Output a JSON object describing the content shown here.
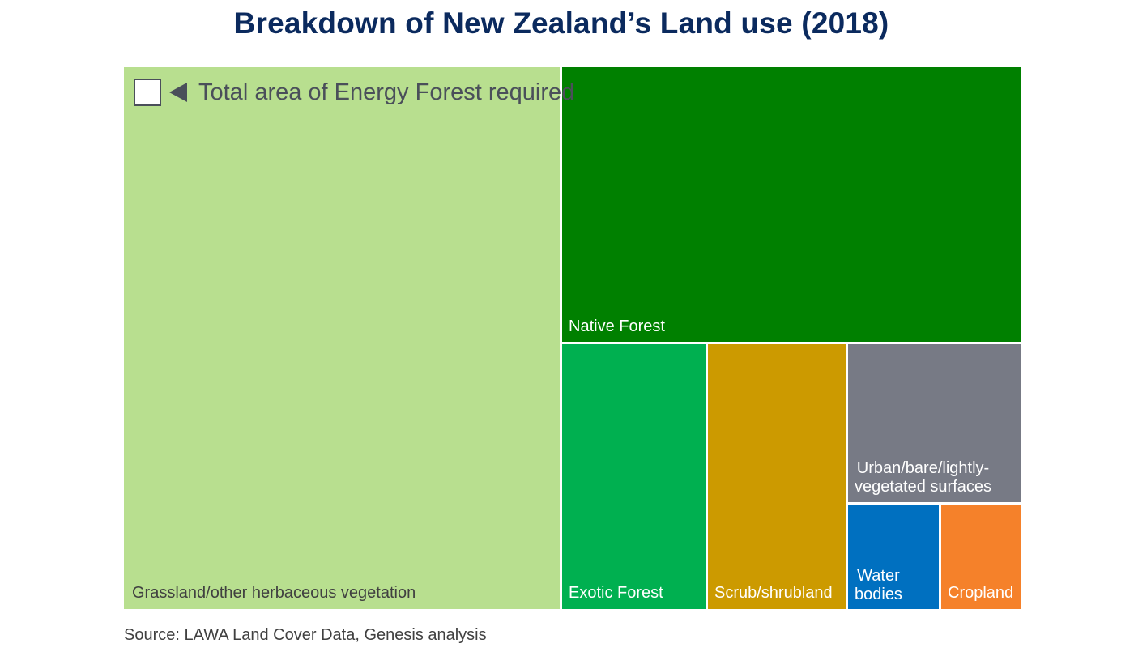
{
  "chart_data": {
    "type": "treemap",
    "title": "Breakdown of New Zealand’s Land use (2018)",
    "source": "Source: LAWA Land Cover Data, Genesis analysis",
    "annotation": "Total area of Energy Forest required",
    "categories": [
      "Grassland/other herbaceous vegetation",
      "Native Forest",
      "Exotic Forest",
      "Scrub/shrubland",
      "Urban/bare/lightly-\nvegetated surfaces",
      "Water bodies",
      "Cropland"
    ],
    "values": [
      48.5,
      30.8,
      8.0,
      7.8,
      5.5,
      1.5,
      1.3
    ],
    "colors": [
      "#b8df8f",
      "#008000",
      "#00b050",
      "#cc9a00",
      "#777a85",
      "#0070c0",
      "#f5812a"
    ],
    "label_colors": [
      "#404040",
      "#ffffff",
      "#ffffff",
      "#ffffff",
      "#ffffff",
      "#ffffff",
      "#ffffff"
    ],
    "labels": {
      "grassland": "Grassland/other herbaceous vegetation",
      "native_forest": "Native Forest",
      "exotic_forest": "Exotic Forest",
      "scrub": "Scrub/shrubland",
      "urban": "Urban/bare/lightly-\nvegetated surfaces",
      "water": "Water\nbodies",
      "cropland": "Cropland"
    }
  }
}
